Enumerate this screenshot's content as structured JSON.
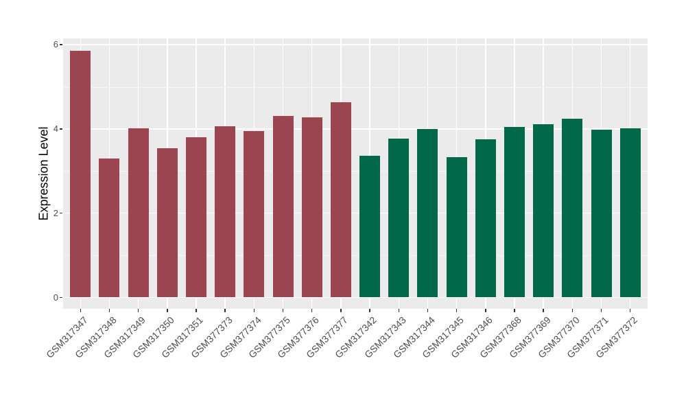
{
  "chart_data": {
    "type": "bar",
    "title": "",
    "xlabel": "",
    "ylabel": "Expression Level",
    "ylim": [
      0,
      6.13
    ],
    "yticks": [
      0,
      2,
      4,
      6
    ],
    "minor_yticks": [
      1,
      3,
      5
    ],
    "grid": "on",
    "legend": "none",
    "categories": [
      "GSM317347",
      "GSM317348",
      "GSM317349",
      "GSM317350",
      "GSM317351",
      "GSM377373",
      "GSM377374",
      "GSM377375",
      "GSM377376",
      "GSM377377",
      "GSM317342",
      "GSM317343",
      "GSM317344",
      "GSM317345",
      "GSM317346",
      "GSM377368",
      "GSM377369",
      "GSM377370",
      "GSM377371",
      "GSM377372"
    ],
    "values": [
      5.85,
      3.29,
      4.01,
      3.54,
      3.81,
      4.07,
      3.95,
      4.3,
      4.27,
      4.63,
      3.37,
      3.77,
      4.0,
      3.33,
      3.76,
      4.05,
      4.11,
      4.24,
      3.99,
      4.02
    ],
    "bar_colors": [
      "#9B4452",
      "#9B4452",
      "#9B4452",
      "#9B4452",
      "#9B4452",
      "#9B4452",
      "#9B4452",
      "#9B4452",
      "#9B4452",
      "#9B4452",
      "#01694A",
      "#01694A",
      "#01694A",
      "#01694A",
      "#01694A",
      "#01694A",
      "#01694A",
      "#01694A",
      "#01694A",
      "#01694A"
    ]
  },
  "style": {
    "background": "#FFFFFF",
    "panel_bg": "#EBEBEB",
    "grid_color": "#FFFFFF",
    "tick_color": "#333333",
    "axis_text_color": "#4D4D4D",
    "axis_title_color": "#000000",
    "group1_color": "#9B4452",
    "group2_color": "#01694A"
  }
}
